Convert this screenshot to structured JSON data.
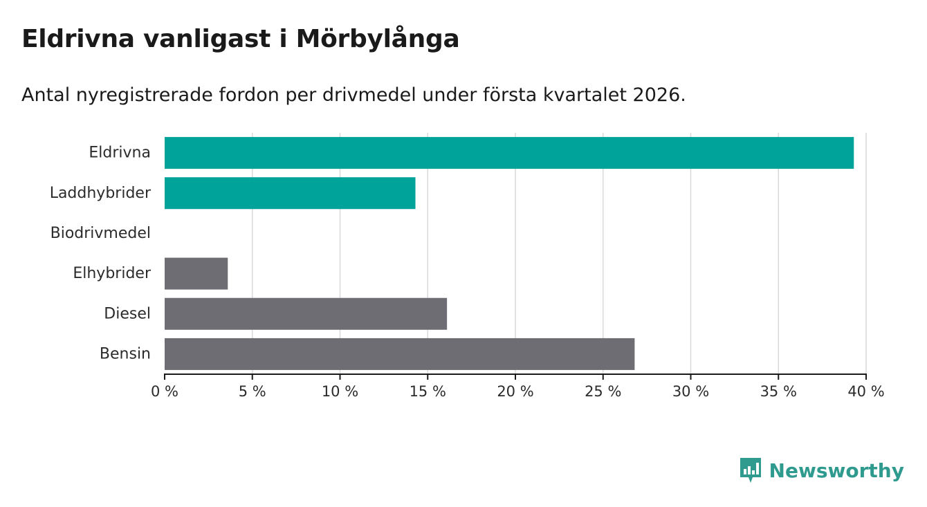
{
  "title": "Eldrivna vanligast i Mörbylånga",
  "subtitle": "Antal nyregistrerade fordon per drivmedel under första kvartalet 2026.",
  "brand": {
    "name": "Newsworthy",
    "icon": "bar-chart-icon"
  },
  "colors": {
    "highlight": "#00a39a",
    "other": "#6e6d73",
    "grid": "#d9d9d9",
    "axis": "#1a1a1a"
  },
  "chart_data": {
    "type": "bar",
    "orientation": "horizontal",
    "title": "Eldrivna vanligast i Mörbylånga",
    "subtitle": "Antal nyregistrerade fordon per drivmedel under första kvartalet 2026.",
    "xlabel": "",
    "ylabel": "",
    "xlim": [
      0,
      40
    ],
    "ticks": [
      0,
      5,
      10,
      15,
      20,
      25,
      30,
      35,
      40
    ],
    "tick_labels": [
      "0 %",
      "5 %",
      "10 %",
      "15 %",
      "20 %",
      "25 %",
      "30 %",
      "35 %",
      "40 %"
    ],
    "grid": true,
    "categories": [
      "Eldrivna",
      "Laddhybrider",
      "Biodrivmedel",
      "Elhybrider",
      "Diesel",
      "Bensin"
    ],
    "values": [
      39.3,
      14.3,
      0,
      3.6,
      16.1,
      26.8
    ],
    "groups": [
      "highlight",
      "highlight",
      "highlight",
      "other",
      "other",
      "other"
    ]
  }
}
